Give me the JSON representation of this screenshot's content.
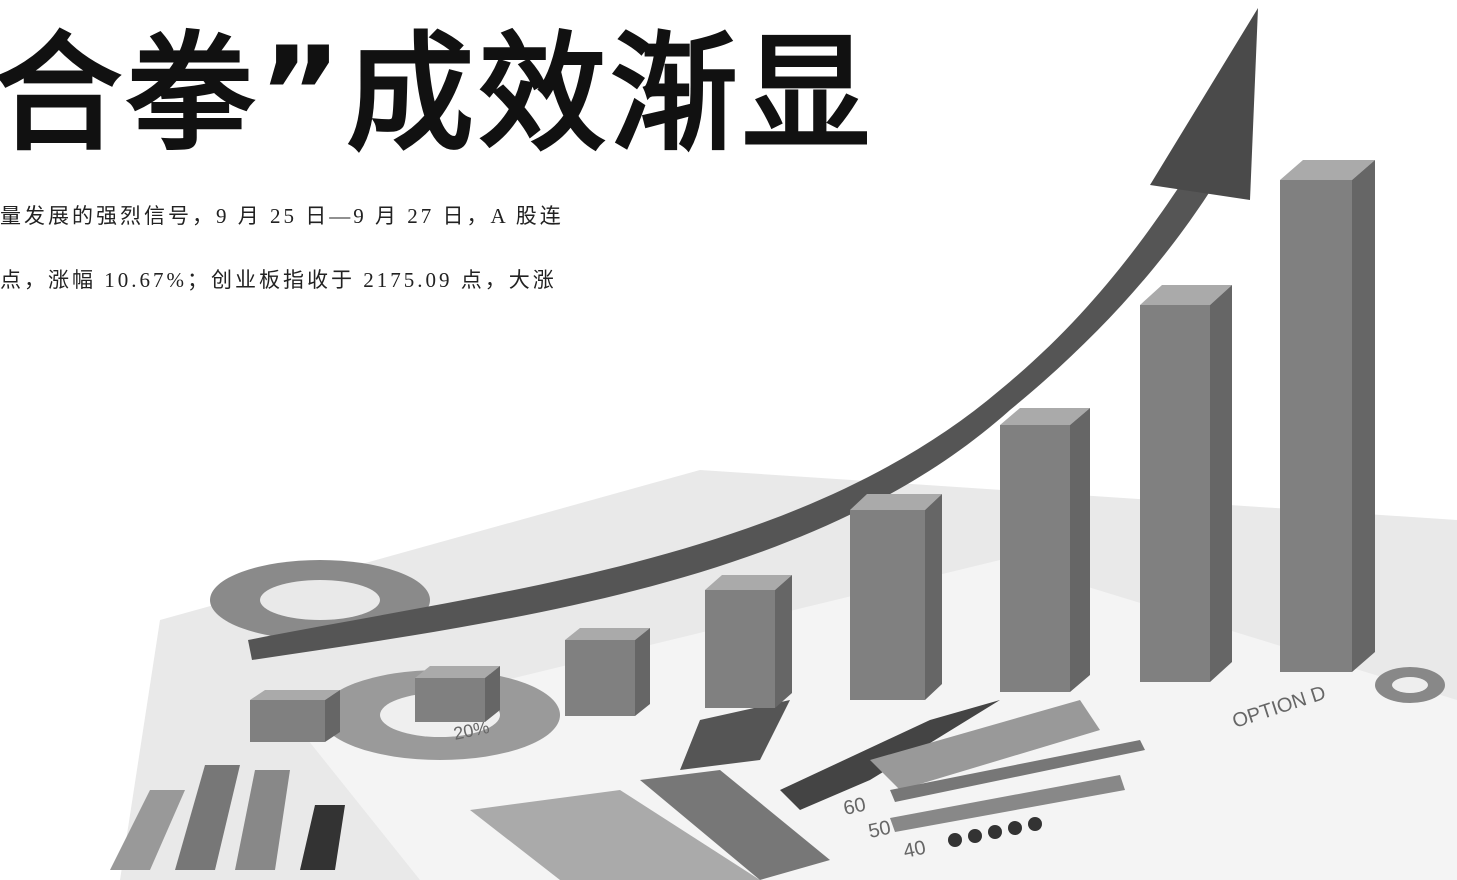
{
  "header": {
    "title": "合拳”成效渐显"
  },
  "article": {
    "lines": [
      "量发展的强烈信号，9 月 25 日—9 月 27 日，A 股连",
      "点，涨幅 10.67%；创业板指收于 2175.09 点，大涨"
    ]
  },
  "illustration": {
    "labels": [
      "20%",
      "OPTION D",
      "60",
      "50",
      "40"
    ]
  }
}
